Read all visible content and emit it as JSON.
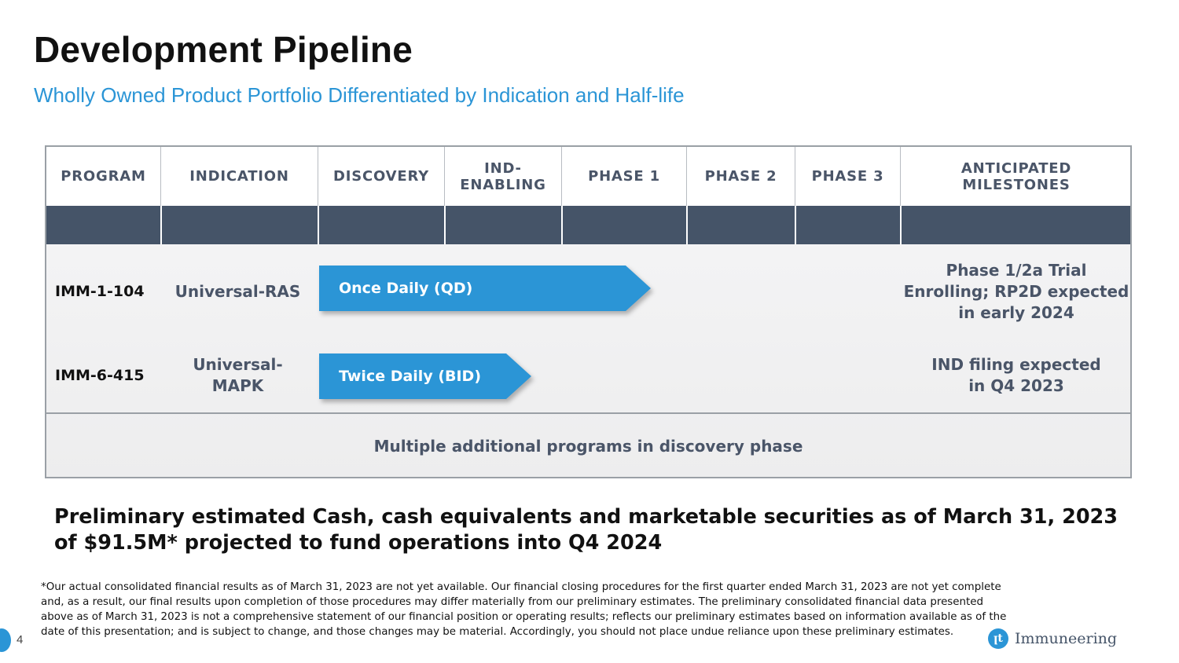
{
  "title": "Development Pipeline",
  "subtitle": "Wholly Owned Product Portfolio Differentiated by Indication and Half-life",
  "table": {
    "headers": [
      "PROGRAM",
      "INDICATION",
      "DISCOVERY",
      "IND-\nENABLING",
      "PHASE 1",
      "PHASE 2",
      "PHASE 3",
      "ANTICIPATED\nMILESTONES"
    ],
    "rows": [
      {
        "program": "IMM-1-104",
        "indication": "Universal-RAS",
        "bar_label": "Once Daily (QD)",
        "milestone": "Phase 1/2a Trial Enrolling; RP2D expected in early 2024"
      },
      {
        "program": "IMM-6-415",
        "indication": "Universal-\nMAPK",
        "bar_label": "Twice Daily (BID)",
        "milestone": "IND filing expected\nin Q4 2023"
      }
    ],
    "bottom_note": "Multiple additional programs in discovery phase"
  },
  "cash_statement": "Preliminary estimated Cash, cash equivalents and marketable securities as of March 31, 2023 of $91.5M* projected to fund operations into Q4 2024",
  "footnote": "*Our actual consolidated financial results as of March 31, 2023 are not yet available. Our financial closing procedures for the first quarter ended March 31, 2023 are not yet complete and, as a result, our final results upon completion of those procedures may differ materially from our preliminary estimates. The preliminary consolidated financial data presented above as of March 31, 2023 is not a comprehensive statement of our financial position or operating results; reflects our preliminary estimates based on information available as of the date of this presentation; and is subject to change, and those changes may be material. Accordingly, you should not place undue reliance upon these preliminary estimates.",
  "page_number": "4",
  "logo": {
    "text": "Immuneering",
    "icon": "immuneering-logo-icon"
  },
  "colors": {
    "accent": "#2b95d6",
    "header_bar": "#455468",
    "text_gray": "#4a5568"
  }
}
